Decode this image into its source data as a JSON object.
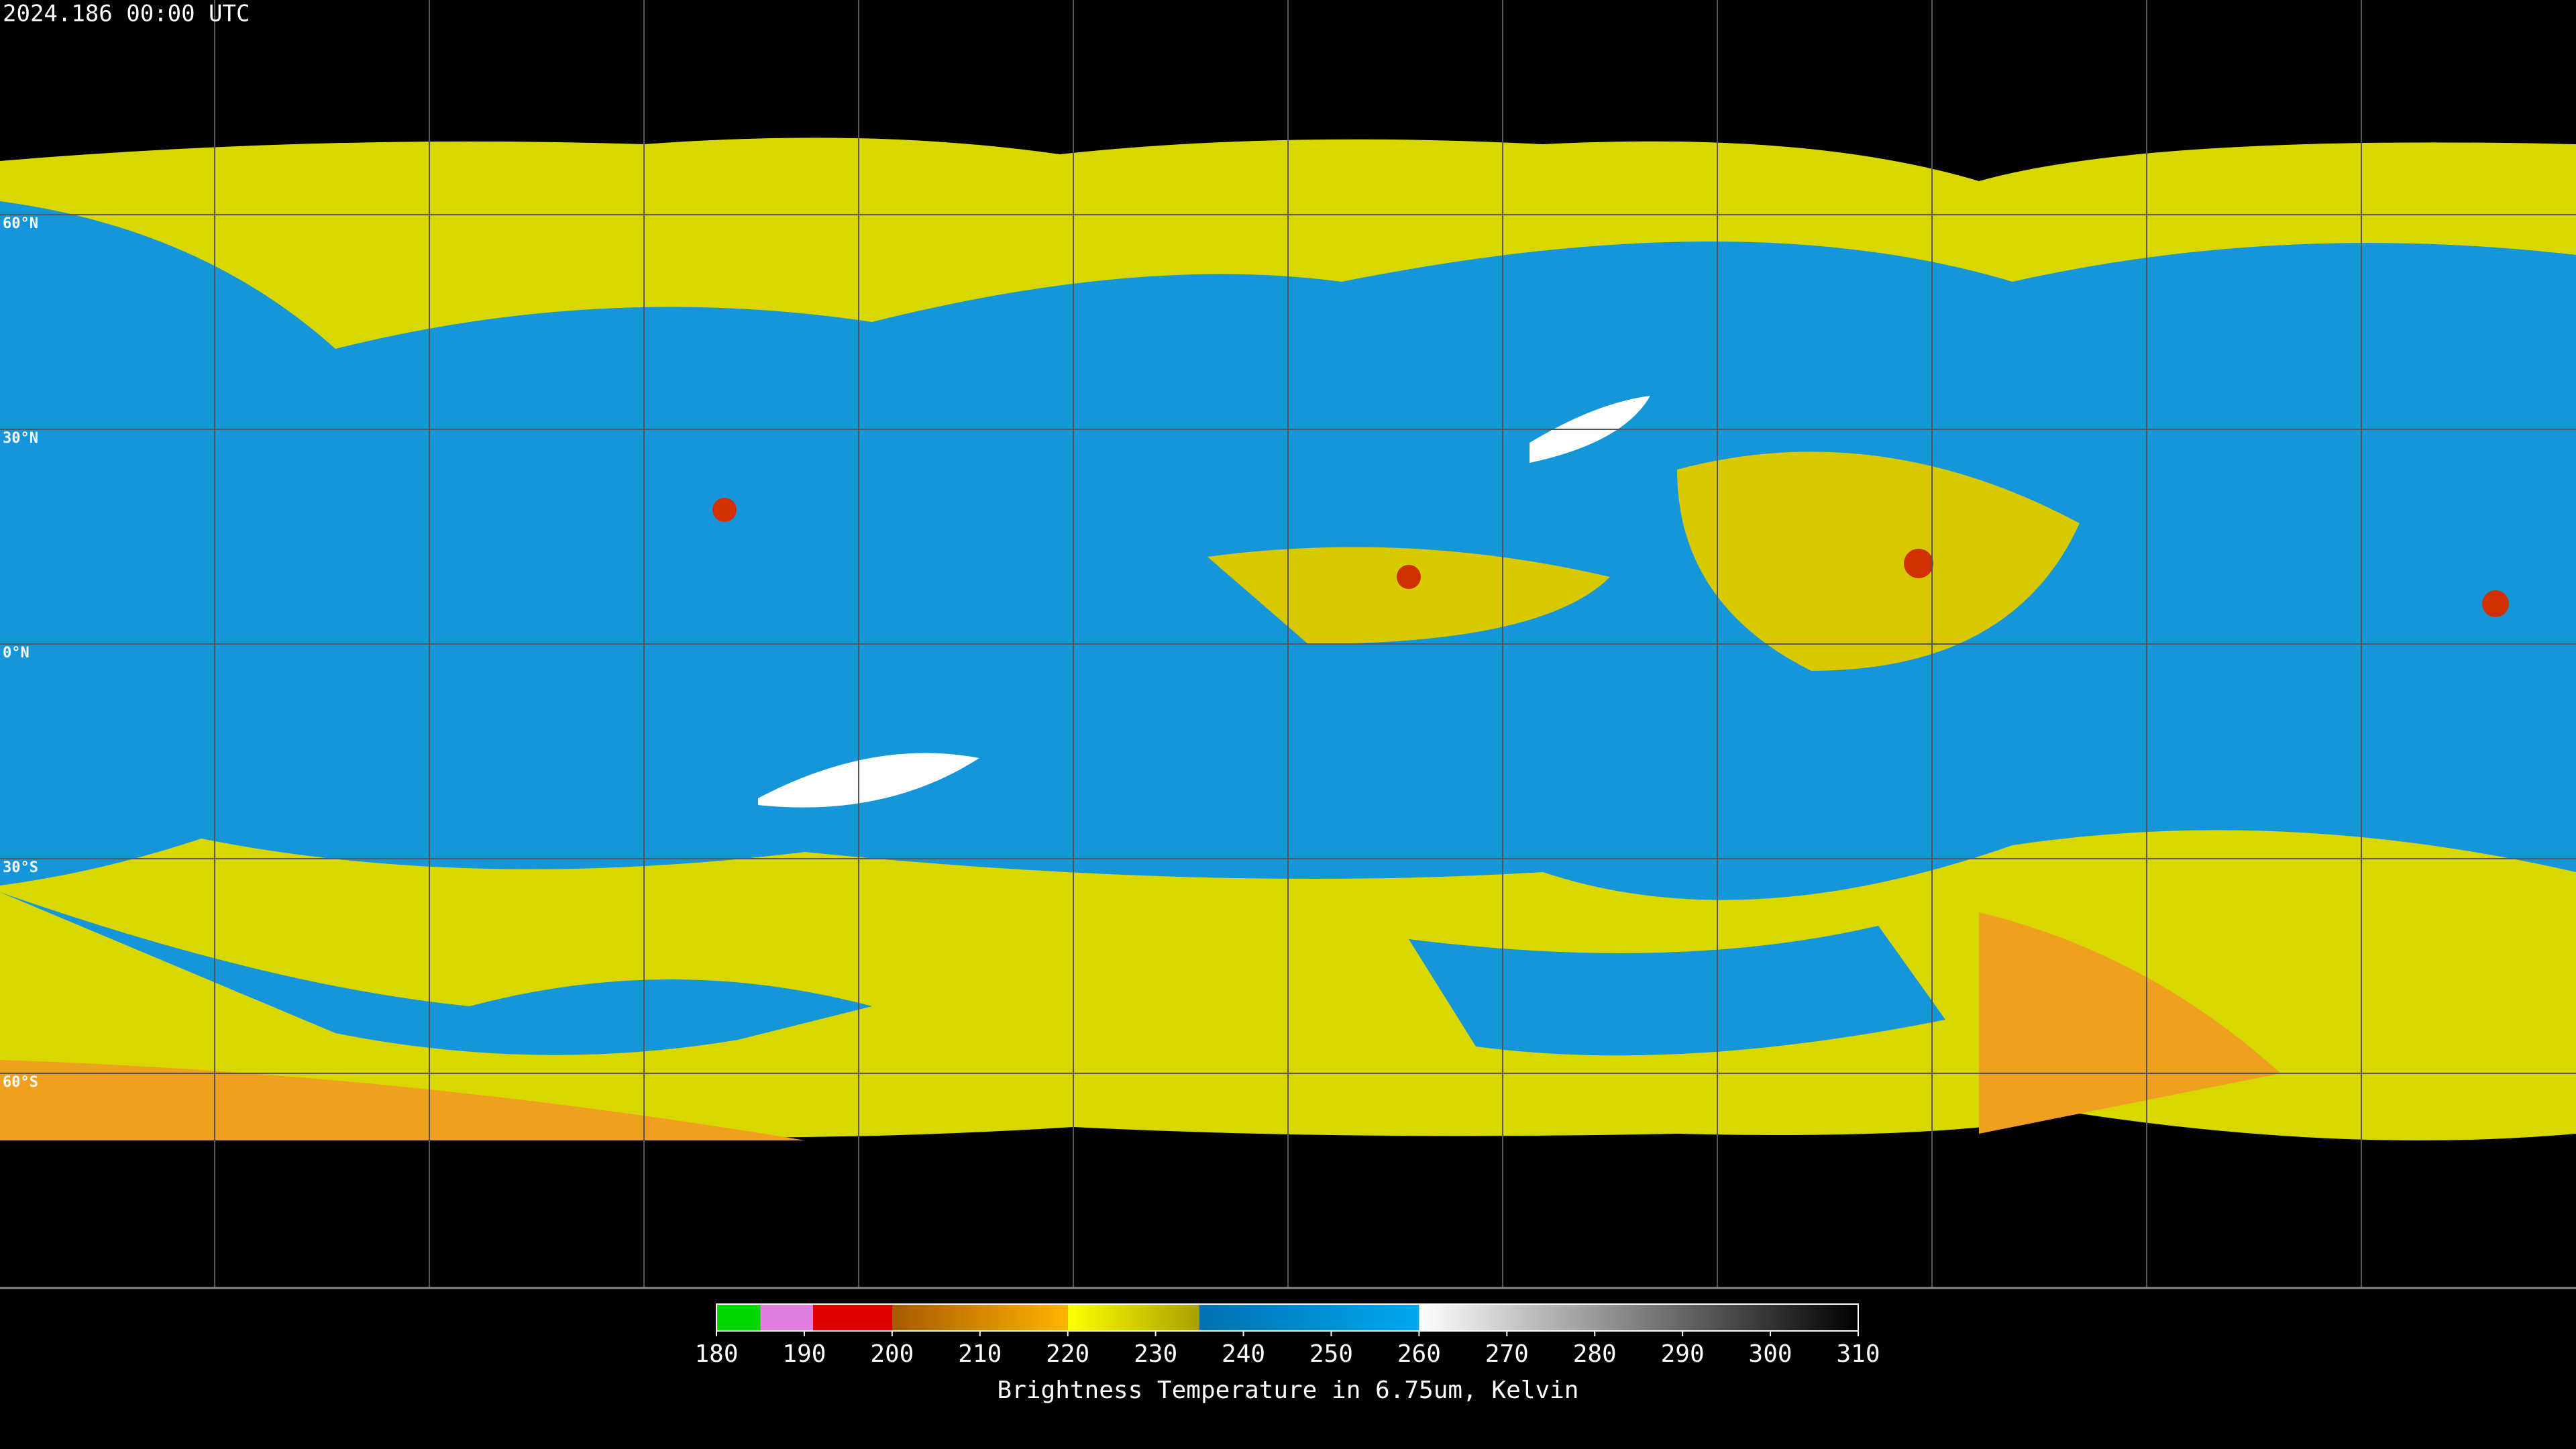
{
  "header": {
    "timestamp": "2024.186 00:00 UTC"
  },
  "map": {
    "lat_grid": [
      {
        "value": 60,
        "label": "60°N"
      },
      {
        "value": 30,
        "label": "30°N"
      },
      {
        "value": 0,
        "label": "0°N"
      },
      {
        "value": -30,
        "label": "30°S"
      },
      {
        "value": -60,
        "label": "60°S"
      }
    ],
    "lon_grid": [
      -150,
      -120,
      -90,
      -60,
      -30,
      0,
      30,
      60,
      90,
      120,
      150
    ],
    "lat_range": [
      90,
      -90
    ],
    "lon_range": [
      -180,
      180
    ]
  },
  "colorbar": {
    "title": "Brightness Temperature in 6.75um, Kelvin",
    "range": [
      180,
      310
    ],
    "ticks": [
      180,
      190,
      200,
      210,
      220,
      230,
      240,
      250,
      260,
      270,
      280,
      290,
      300,
      310
    ],
    "segments": [
      {
        "from": 180,
        "to": 185,
        "colors": [
          "#00d800",
          "#00d800"
        ]
      },
      {
        "from": 185,
        "to": 191,
        "colors": [
          "#e080e0",
          "#e080e0"
        ]
      },
      {
        "from": 191,
        "to": 200,
        "colors": [
          "#e00000",
          "#e00000"
        ]
      },
      {
        "from": 200,
        "to": 220,
        "colors": [
          "#a85a00",
          "#ffb400"
        ]
      },
      {
        "from": 220,
        "to": 235,
        "colors": [
          "#ffff00",
          "#a8a000"
        ]
      },
      {
        "from": 235,
        "to": 260,
        "colors": [
          "#0070b0",
          "#00a8f0"
        ]
      },
      {
        "from": 260,
        "to": 310,
        "colors": [
          "#ffffff",
          "#000000"
        ]
      }
    ]
  }
}
